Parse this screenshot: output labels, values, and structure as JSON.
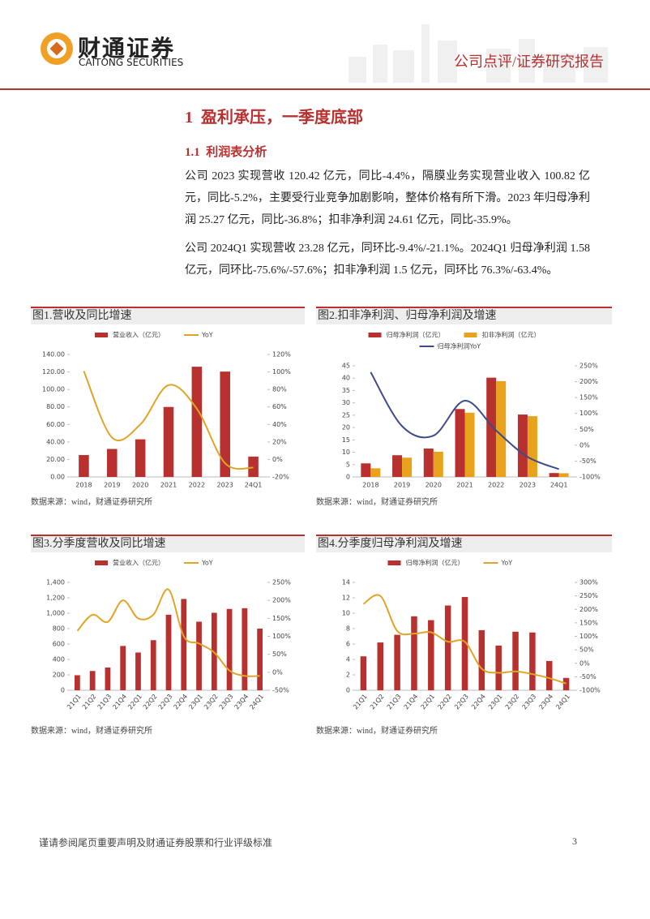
{
  "header": {
    "logo_cn": "财通证券",
    "logo_en": "CAITONG SECURITIES",
    "report_type": "公司点评/证券研究报告"
  },
  "section": {
    "number": "1",
    "title": "盈利承压，一季度底部"
  },
  "subsection": {
    "number": "1.1",
    "title": "利润表分析"
  },
  "paragraphs": [
    "公司 2023 实现营收 120.42 亿元，同比-4.4%，隔膜业务实现营业收入 100.82 亿元，同比-5.2%，主要受行业竞争加剧影响，整体价格有所下滑。2023 年归母净利润 25.27 亿元，同比-36.8%；扣非净利润 24.61 亿元，同比-35.9%。",
    "公司 2024Q1 实现营收 23.28 亿元，同环比-9.4%/-21.1%。2024Q1 归母净利润 1.58 亿元，同环比-75.6%/-57.6%；扣非净利润 1.5 亿元，同环比 76.3%/-63.4%。"
  ],
  "figures": [
    {
      "title": "图1.营收及同比增速",
      "source": "数据来源：wind，财通证券研究所"
    },
    {
      "title": "图2.扣非净利润、归母净利润及增速",
      "source": "数据来源：wind，财通证券研究所"
    },
    {
      "title": "图3.分季度营收及同比增速",
      "source": "数据来源：wind，财通证券研究所"
    },
    {
      "title": "图4.分季度归母净利润及增速",
      "source": "数据来源：wind，财通证券研究所"
    }
  ],
  "chart_data": [
    {
      "type": "combo",
      "categories": [
        "2018",
        "2019",
        "2020",
        "2021",
        "2022",
        "2023",
        "24Q1"
      ],
      "series": [
        {
          "name": "营业收入（亿元）",
          "mark": "bar",
          "color": "#b8312f",
          "values": [
            25,
            32,
            43,
            80,
            126,
            120.42,
            23.28
          ]
        },
        {
          "name": "YoY",
          "mark": "line",
          "axis": "y2",
          "color": "#e0a526",
          "values": [
            101,
            25,
            40,
            85,
            58,
            -4.4,
            -9.4
          ]
        }
      ],
      "ylim": [
        0,
        140
      ],
      "yticks": [
        {
          "value": 0,
          "label": "0.00"
        },
        {
          "value": 20,
          "label": "20.00"
        },
        {
          "value": 40,
          "label": "40.00"
        },
        {
          "value": 60,
          "label": "60.00"
        },
        {
          "value": 80,
          "label": "80.00"
        },
        {
          "value": 100,
          "label": "100.00"
        },
        {
          "value": 120,
          "label": "120.00"
        },
        {
          "value": 140,
          "label": "140.00"
        }
      ],
      "y2lim": [
        -20,
        120
      ],
      "y2ticks": [
        {
          "value": -20,
          "label": "-20%"
        },
        {
          "value": 0,
          "label": "0%"
        },
        {
          "value": 20,
          "label": "20%"
        },
        {
          "value": 40,
          "label": "40%"
        },
        {
          "value": 60,
          "label": "60%"
        },
        {
          "value": 80,
          "label": "80%"
        },
        {
          "value": 100,
          "label": "100%"
        },
        {
          "value": 120,
          "label": "120%"
        }
      ],
      "x_labels_rotated": false,
      "grid": false
    },
    {
      "type": "combo",
      "categories": [
        "2018",
        "2019",
        "2020",
        "2021",
        "2022",
        "2023",
        "24Q1"
      ],
      "series": [
        {
          "name": "归母净利润（亿元）",
          "mark": "bar",
          "color": "#b8312f",
          "values": [
            5.5,
            8.8,
            11.5,
            27.5,
            40.2,
            25.27,
            1.58
          ]
        },
        {
          "name": "扣非净利润（亿元）",
          "mark": "bar",
          "color": "#e8a21b",
          "values": [
            3.5,
            7.8,
            10.2,
            26,
            38.8,
            24.61,
            1.5
          ]
        },
        {
          "name": "归母净利润YoY",
          "mark": "line",
          "axis": "y2",
          "color": "#3f4a8a",
          "values": [
            230,
            60,
            30,
            140,
            46,
            -36.8,
            -75.6
          ]
        }
      ],
      "ylim": [
        0,
        45
      ],
      "yticks": [
        0,
        5,
        10,
        15,
        20,
        25,
        30,
        35,
        40,
        45
      ],
      "y2lim": [
        -100,
        250
      ],
      "y2ticks": [
        {
          "value": -100,
          "label": "-100%"
        },
        {
          "value": -50,
          "label": "-50%"
        },
        {
          "value": 0,
          "label": "0%"
        },
        {
          "value": 50,
          "label": "50%"
        },
        {
          "value": 100,
          "label": "100%"
        },
        {
          "value": 150,
          "label": "150%"
        },
        {
          "value": 200,
          "label": "200%"
        },
        {
          "value": 250,
          "label": "250%"
        }
      ],
      "x_labels_rotated": false,
      "grid": false
    },
    {
      "type": "combo",
      "categories": [
        "21Q1",
        "21Q2",
        "21Q3",
        "21Q4",
        "22Q1",
        "22Q2",
        "22Q3",
        "22Q4",
        "23Q1",
        "23Q2",
        "23Q3",
        "23Q4",
        "24Q1"
      ],
      "series": [
        {
          "name": "营业收入（亿元）",
          "mark": "bar",
          "color": "#b8312f",
          "values": [
            195,
            250,
            295,
            575,
            490,
            650,
            980,
            1185,
            890,
            1005,
            1055,
            1065,
            800
          ]
        },
        {
          "name": "YoY",
          "mark": "line",
          "axis": "y2",
          "color": "#e0a526",
          "values": [
            115,
            160,
            140,
            200,
            150,
            160,
            230,
            100,
            80,
            55,
            5,
            -10,
            -10
          ]
        }
      ],
      "ylim": [
        0,
        1400
      ],
      "yticks": [
        0,
        200,
        400,
        600,
        800,
        {
          "value": 1000,
          "label": "1,000"
        },
        {
          "value": 1200,
          "label": "1,200"
        },
        {
          "value": 1400,
          "label": "1,400"
        }
      ],
      "y2lim": [
        -50,
        250
      ],
      "y2ticks": [
        {
          "value": -50,
          "label": "-50%"
        },
        {
          "value": 0,
          "label": "0%"
        },
        {
          "value": 50,
          "label": "50%"
        },
        {
          "value": 100,
          "label": "100%"
        },
        {
          "value": 150,
          "label": "150%"
        },
        {
          "value": 200,
          "label": "200%"
        },
        {
          "value": 250,
          "label": "250%"
        }
      ],
      "x_labels_rotated": true,
      "grid": false
    },
    {
      "type": "combo",
      "categories": [
        "21Q1",
        "21Q2",
        "21Q3",
        "21Q4",
        "22Q1",
        "22Q2",
        "22Q3",
        "22Q4",
        "23Q1",
        "23Q2",
        "23Q3",
        "23Q4",
        "24Q1"
      ],
      "series": [
        {
          "name": "归母净利润（亿元）",
          "mark": "bar",
          "color": "#b8312f",
          "values": [
            4.4,
            6.2,
            7.2,
            9.6,
            9.1,
            11.0,
            12.1,
            7.8,
            5.8,
            7.6,
            7.5,
            3.8,
            1.6
          ]
        },
        {
          "name": "YoY",
          "mark": "line",
          "axis": "y2",
          "color": "#e0a526",
          "values": [
            220,
            250,
            120,
            110,
            115,
            80,
            80,
            -20,
            -35,
            -30,
            -40,
            -55,
            -75
          ]
        }
      ],
      "ylim": [
        0,
        14
      ],
      "yticks": [
        0,
        2,
        4,
        6,
        8,
        10,
        12,
        14
      ],
      "y2lim": [
        -100,
        300
      ],
      "y2ticks": [
        {
          "value": -100,
          "label": "-100%"
        },
        {
          "value": -50,
          "label": "-50%"
        },
        {
          "value": 0,
          "label": "0%"
        },
        {
          "value": 50,
          "label": "50%"
        },
        {
          "value": 100,
          "label": "100%"
        },
        {
          "value": 150,
          "label": "150%"
        },
        {
          "value": 200,
          "label": "200%"
        },
        {
          "value": 250,
          "label": "250%"
        },
        {
          "value": 300,
          "label": "300%"
        }
      ],
      "x_labels_rotated": true,
      "grid": false
    }
  ],
  "footer": {
    "disclaimer": "谨请参阅尾页重要声明及财通证券股票和行业评级标准",
    "page": 3
  }
}
